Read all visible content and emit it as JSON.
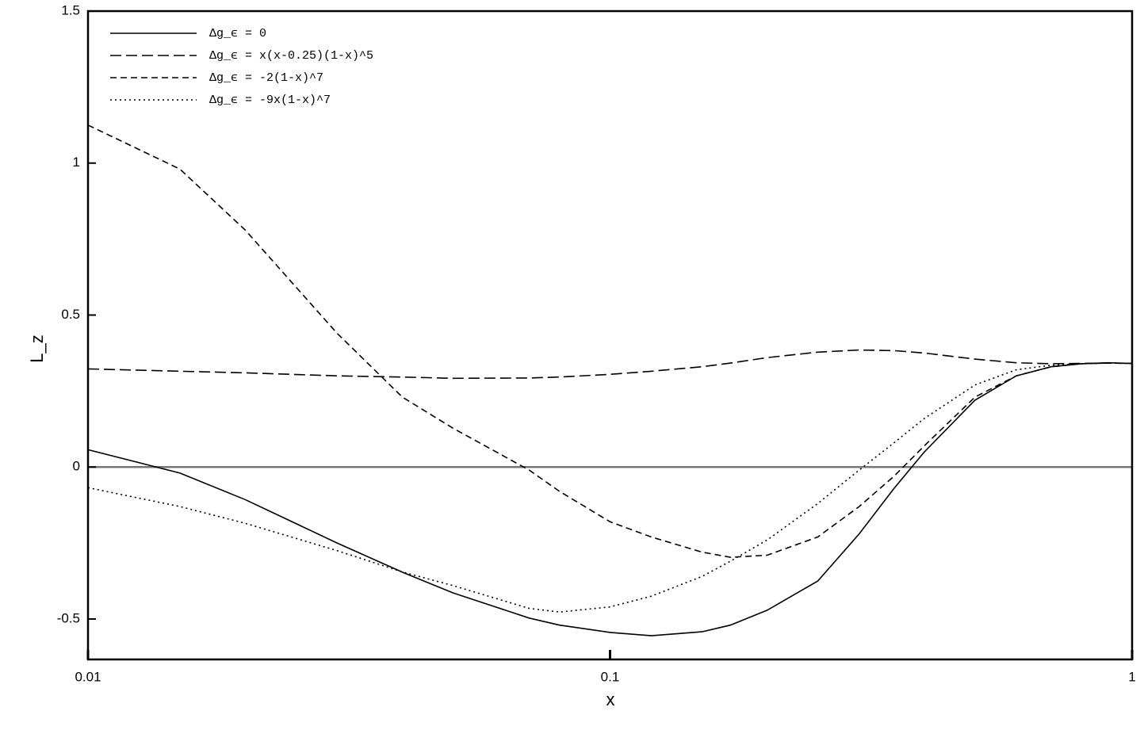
{
  "chart_data": {
    "type": "line",
    "x_label": "x",
    "y_label": "L_z",
    "xscale": "log",
    "xlim": [
      0.01,
      1
    ],
    "xticks": [
      0.01,
      0.1,
      1
    ],
    "ylim": [
      -0.633,
      1.5
    ],
    "yticks": [
      -0.5,
      0,
      0.5,
      1,
      1.5
    ],
    "reference_line": 0,
    "legend_position": "upper left",
    "x": [
      0.01,
      0.015,
      0.02,
      0.03,
      0.04,
      0.05,
      0.07,
      0.08,
      0.1,
      0.12,
      0.15,
      0.17,
      0.2,
      0.25,
      0.3,
      0.35,
      0.4,
      0.5,
      0.6,
      0.7,
      0.8,
      0.9,
      1
    ],
    "series": [
      {
        "name": "Δg_ϵ = 0",
        "color": "#000000",
        "dash": "solid",
        "values": [
          0.057,
          -0.02,
          -0.107,
          -0.25,
          -0.346,
          -0.414,
          -0.497,
          -0.52,
          -0.544,
          -0.555,
          -0.542,
          -0.52,
          -0.471,
          -0.375,
          -0.22,
          -0.07,
          0.05,
          0.22,
          0.3,
          0.33,
          0.34,
          0.343,
          0.341
        ]
      },
      {
        "name": "Δg_ϵ = x(x-0.25)(1-x)^5",
        "color": "#000000",
        "dash": "long-dash",
        "values": [
          0.323,
          0.315,
          0.31,
          0.3,
          0.296,
          0.292,
          0.293,
          0.296,
          0.305,
          0.315,
          0.33,
          0.342,
          0.36,
          0.378,
          0.385,
          0.383,
          0.375,
          0.355,
          0.343,
          0.34,
          0.341,
          0.342,
          0.341
        ]
      },
      {
        "name": "Δg_ϵ = -2(1-x)^7",
        "color": "#000000",
        "dash": "dash",
        "values": [
          1.125,
          0.98,
          0.78,
          0.44,
          0.23,
          0.128,
          -0.01,
          -0.08,
          -0.18,
          -0.23,
          -0.28,
          -0.297,
          -0.29,
          -0.23,
          -0.13,
          -0.03,
          0.07,
          0.23,
          0.3,
          0.33,
          0.34,
          0.342,
          0.341
        ]
      },
      {
        "name": "Δg_ϵ = -9x(1-x)^7",
        "color": "#000000",
        "dash": "dot",
        "values": [
          -0.068,
          -0.13,
          -0.185,
          -0.275,
          -0.345,
          -0.39,
          -0.465,
          -0.477,
          -0.46,
          -0.425,
          -0.36,
          -0.31,
          -0.24,
          -0.12,
          -0.01,
          0.08,
          0.16,
          0.27,
          0.32,
          0.335,
          0.34,
          0.342,
          0.341
        ]
      }
    ]
  }
}
